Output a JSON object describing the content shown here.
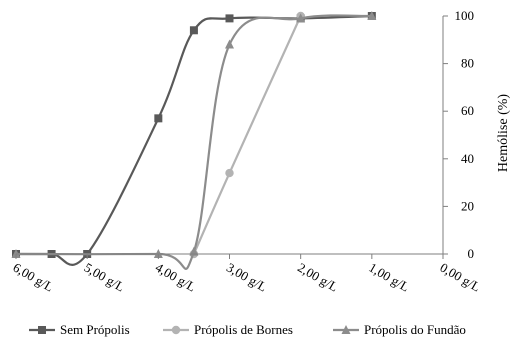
{
  "chart_data": {
    "type": "line",
    "title": "",
    "xlabel": "",
    "ylabel": "Hemólise (%)",
    "x_axis": {
      "reversed": true,
      "xlim": [
        0,
        6
      ],
      "ticks": [
        6,
        5,
        4,
        3,
        2,
        1,
        0
      ],
      "tick_labels": [
        "6,00 g/L",
        "5,00 g/L",
        "4,00 g/L",
        "3,00 g/L",
        "2,00 g/L",
        "1,00 g/L",
        "0,00 g/L"
      ]
    },
    "y_axis": {
      "position": "right",
      "ylim": [
        0,
        100
      ],
      "ticks": [
        0,
        20,
        40,
        60,
        80,
        100
      ]
    },
    "grid": false,
    "legend_position": "bottom",
    "series": [
      {
        "name": "Sem Própolis",
        "marker": "square",
        "color": "#595959",
        "points": [
          {
            "x": 6.0,
            "y": 0
          },
          {
            "x": 5.5,
            "y": 0
          },
          {
            "x": 5.0,
            "y": 0
          },
          {
            "x": 4.0,
            "y": 57
          },
          {
            "x": 3.5,
            "y": 94
          },
          {
            "x": 3.0,
            "y": 99
          },
          {
            "x": 2.0,
            "y": 99
          },
          {
            "x": 1.0,
            "y": 100
          }
        ]
      },
      {
        "name": "Própolis de Bornes",
        "marker": "circle",
        "color": "#b3b3b3",
        "points": [
          {
            "x": 3.5,
            "y": 0
          },
          {
            "x": 3.0,
            "y": 34
          },
          {
            "x": 2.0,
            "y": 100
          }
        ]
      },
      {
        "name": "Própolis do Fundão",
        "marker": "triangle",
        "color": "#8c8c8c",
        "points": [
          {
            "x": 6.0,
            "y": 0
          },
          {
            "x": 4.0,
            "y": 0
          },
          {
            "x": 3.5,
            "y": 1
          },
          {
            "x": 3.0,
            "y": 88
          },
          {
            "x": 2.0,
            "y": 99
          },
          {
            "x": 1.0,
            "y": 100
          }
        ]
      }
    ]
  }
}
